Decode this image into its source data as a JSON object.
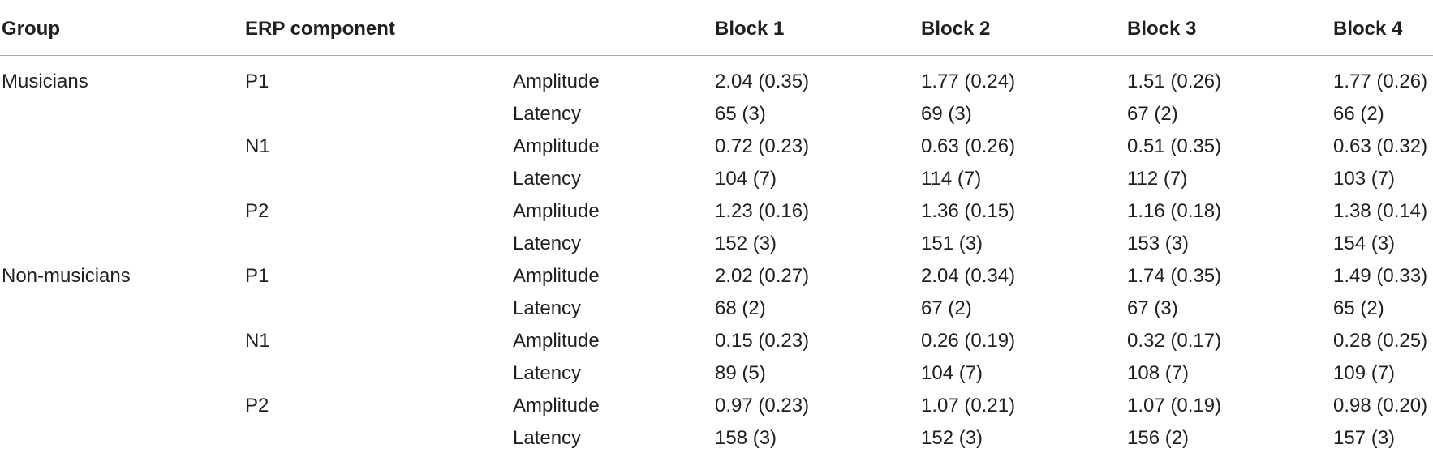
{
  "header": {
    "group": "Group",
    "component": "ERP component",
    "measure": "",
    "blocks": [
      "Block 1",
      "Block 2",
      "Block 3",
      "Block 4"
    ]
  },
  "rows": [
    {
      "group": "Musicians",
      "component": "P1",
      "measure": "Amplitude",
      "values": [
        "2.04 (0.35)",
        "1.77 (0.24)",
        "1.51 (0.26)",
        "1.77 (0.26)"
      ]
    },
    {
      "group": "",
      "component": "",
      "measure": "Latency",
      "values": [
        "65 (3)",
        "69 (3)",
        "67 (2)",
        "66 (2)"
      ]
    },
    {
      "group": "",
      "component": "N1",
      "measure": "Amplitude",
      "values": [
        "0.72 (0.23)",
        "0.63 (0.26)",
        "0.51 (0.35)",
        "0.63 (0.32)"
      ]
    },
    {
      "group": "",
      "component": "",
      "measure": "Latency",
      "values": [
        "104 (7)",
        "114 (7)",
        "112 (7)",
        "103 (7)"
      ]
    },
    {
      "group": "",
      "component": "P2",
      "measure": "Amplitude",
      "values": [
        "1.23 (0.16)",
        "1.36 (0.15)",
        "1.16 (0.18)",
        "1.38 (0.14)"
      ]
    },
    {
      "group": "",
      "component": "",
      "measure": "Latency",
      "values": [
        "152 (3)",
        "151 (3)",
        "153 (3)",
        "154 (3)"
      ]
    },
    {
      "group": "Non-musicians",
      "component": "P1",
      "measure": "Amplitude",
      "values": [
        "2.02 (0.27)",
        "2.04 (0.34)",
        "1.74 (0.35)",
        "1.49 (0.33)"
      ]
    },
    {
      "group": "",
      "component": "",
      "measure": "Latency",
      "values": [
        "68 (2)",
        "67 (2)",
        "67 (3)",
        "65 (2)"
      ]
    },
    {
      "group": "",
      "component": "N1",
      "measure": "Amplitude",
      "values": [
        "0.15 (0.23)",
        "0.26 (0.19)",
        "0.32 (0.17)",
        "0.28 (0.25)"
      ]
    },
    {
      "group": "",
      "component": "",
      "measure": "Latency",
      "values": [
        "89 (5)",
        "104 (7)",
        "108 (7)",
        "109 (7)"
      ]
    },
    {
      "group": "",
      "component": "P2",
      "measure": "Amplitude",
      "values": [
        "0.97 (0.23)",
        "1.07 (0.21)",
        "1.07 (0.19)",
        "0.98 (0.20)"
      ]
    },
    {
      "group": "",
      "component": "",
      "measure": "Latency",
      "values": [
        "158 (3)",
        "152 (3)",
        "156 (2)",
        "157 (3)"
      ]
    }
  ]
}
